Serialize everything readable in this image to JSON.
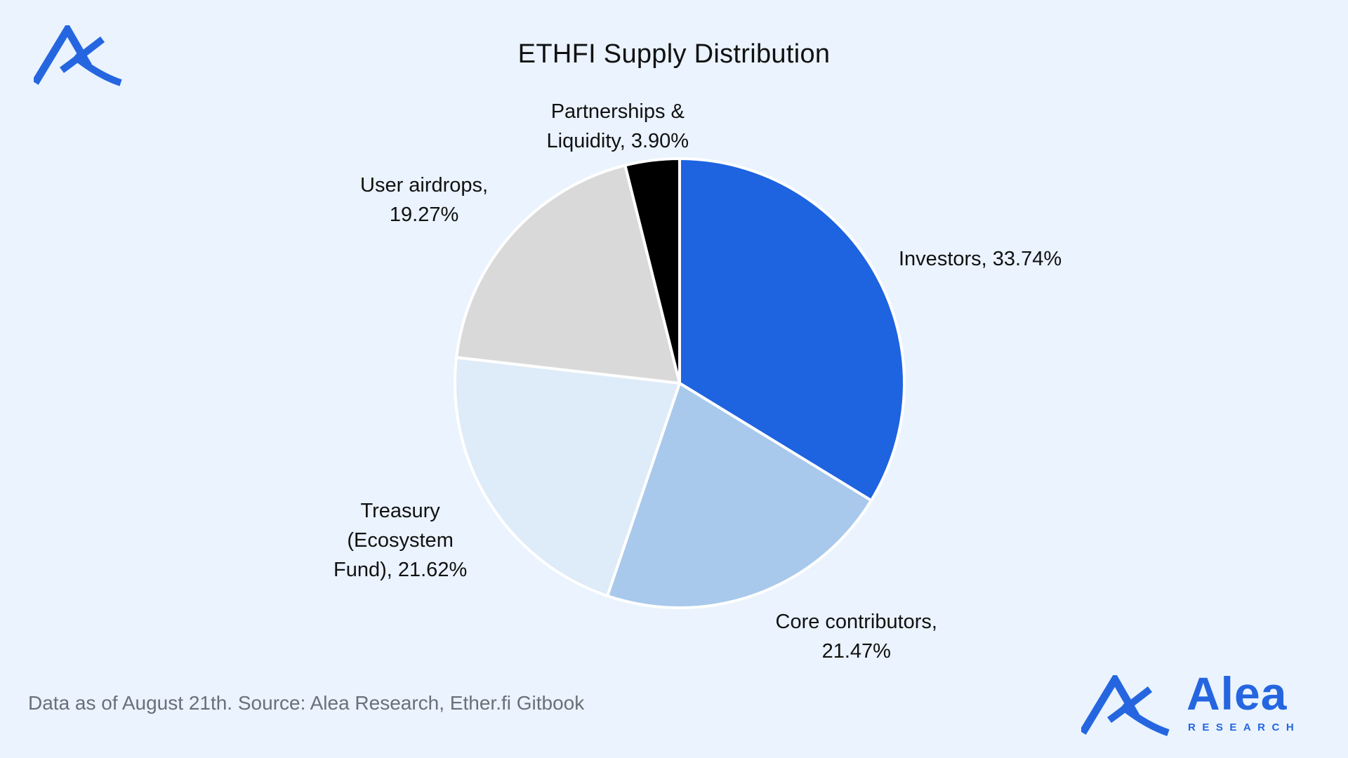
{
  "chart_data": {
    "type": "pie",
    "title": "ETHFI Supply Distribution",
    "slices": [
      {
        "label": "Investors, 33.74%",
        "name": "Investors",
        "value": 33.74,
        "color": "#1e63e0"
      },
      {
        "label": "Core contributors,\n21.47%",
        "name": "Core contributors",
        "value": 21.47,
        "color": "#a8c9ec"
      },
      {
        "label": "Treasury\n(Ecosystem\nFund), 21.62%",
        "name": "Treasury (Ecosystem Fund)",
        "value": 21.62,
        "color": "#deebf8"
      },
      {
        "label": "User airdrops,\n19.27%",
        "name": "User airdrops",
        "value": 19.27,
        "color": "#d9d9d9"
      },
      {
        "label": "Partnerships &\nLiquidity, 3.90%",
        "name": "Partnerships & Liquidity",
        "value": 3.9,
        "color": "#000000"
      }
    ],
    "start_angle": "12 o'clock, clockwise",
    "slice_border_color": "#ffffff"
  },
  "footer": {
    "source": "Data as of August 21th. Source: Alea Research, Ether.fi Gitbook"
  },
  "brand": {
    "name": "Alea",
    "sub": "RESEARCH",
    "color": "#2566e0",
    "logo_icon": "alea-logo-icon"
  }
}
